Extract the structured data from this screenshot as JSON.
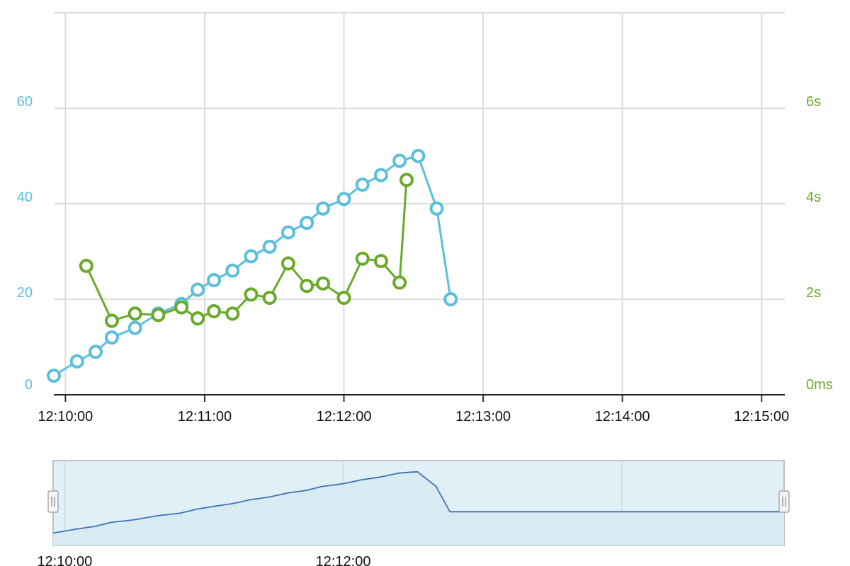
{
  "chart_data": {
    "type": "line",
    "title": "",
    "xlabel": "",
    "x_tick_labels": [
      "12:10:00",
      "12:11:00",
      "12:12:00",
      "12:13:00",
      "12:14:00",
      "12:15:00"
    ],
    "xlim": [
      "12:09:55",
      "12:15:10"
    ],
    "y_left": {
      "ticks": [
        "0",
        "20",
        "40",
        "60"
      ],
      "range": [
        0,
        80
      ],
      "color": "#5bbfdc"
    },
    "y_right": {
      "ticks": [
        "0ms",
        "2s",
        "4s",
        "6s"
      ],
      "range_seconds": [
        0,
        8
      ],
      "color": "#6aaa2a"
    },
    "grid": true,
    "series": [
      {
        "axis": "left",
        "color": "#5bbfdc",
        "points": [
          [
            "12:09:55",
            4
          ],
          [
            "12:10:05",
            7
          ],
          [
            "12:10:13",
            9
          ],
          [
            "12:10:20",
            12
          ],
          [
            "12:10:30",
            14
          ],
          [
            "12:10:40",
            17
          ],
          [
            "12:10:50",
            19
          ],
          [
            "12:10:57",
            22
          ],
          [
            "12:11:04",
            24
          ],
          [
            "12:11:12",
            26
          ],
          [
            "12:11:20",
            29
          ],
          [
            "12:11:28",
            31
          ],
          [
            "12:11:36",
            34
          ],
          [
            "12:11:44",
            36
          ],
          [
            "12:11:51",
            39
          ],
          [
            "12:12:00",
            41
          ],
          [
            "12:12:08",
            44
          ],
          [
            "12:12:16",
            46
          ],
          [
            "12:12:24",
            49
          ],
          [
            "12:12:32",
            50
          ],
          [
            "12:12:40",
            39
          ],
          [
            "12:12:46",
            20
          ]
        ]
      },
      {
        "axis": "right",
        "color": "#6aaa2a",
        "points": [
          [
            "12:10:09",
            2.7
          ],
          [
            "12:10:20",
            1.55
          ],
          [
            "12:10:30",
            1.7
          ],
          [
            "12:10:40",
            1.67
          ],
          [
            "12:10:50",
            1.83
          ],
          [
            "12:10:57",
            1.6
          ],
          [
            "12:11:04",
            1.75
          ],
          [
            "12:11:12",
            1.7
          ],
          [
            "12:11:20",
            2.1
          ],
          [
            "12:11:28",
            2.03
          ],
          [
            "12:11:36",
            2.75
          ],
          [
            "12:11:44",
            2.28
          ],
          [
            "12:11:51",
            2.33
          ],
          [
            "12:12:00",
            2.03
          ],
          [
            "12:12:08",
            2.85
          ],
          [
            "12:12:16",
            2.8
          ],
          [
            "12:12:24",
            2.35
          ],
          [
            "12:12:27",
            4.5
          ]
        ]
      }
    ]
  },
  "navigator": {
    "x_tick_labels": [
      "12:10:00",
      "12:12:00"
    ],
    "line_color": "#3d74b0",
    "fill_color": "#e0f0f6",
    "outline_color": "#bfc3c6"
  }
}
